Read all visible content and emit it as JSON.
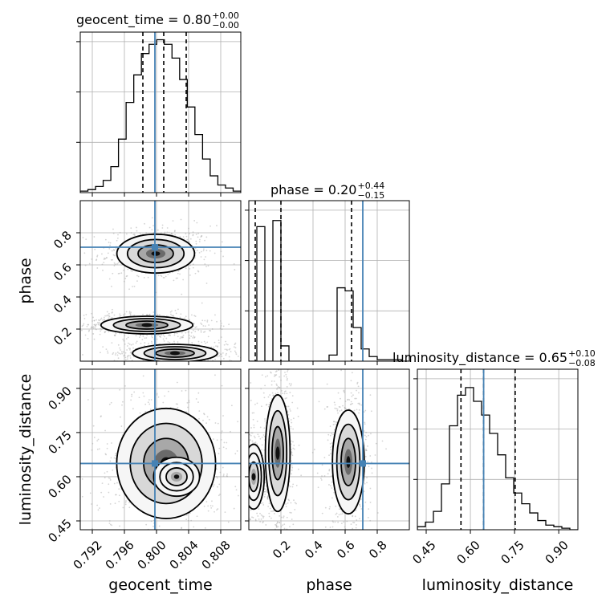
{
  "colors": {
    "truth": "#4682b4",
    "contour": "#000000",
    "grid": "#b0b0b0",
    "points": "#a0a0a0"
  },
  "titles": [
    {
      "name": "geocent_time",
      "eq": " = 0.80",
      "sup": "+0.00",
      "sub": "−0.00"
    },
    {
      "name": "phase",
      "eq": " = 0.20",
      "sup": "+0.44",
      "sub": "−0.15"
    },
    {
      "name": "luminosity_distance",
      "eq": " = 0.65",
      "sup": "+0.10",
      "sub": "−0.08"
    }
  ],
  "chart_data": {
    "type": "corner",
    "parameters": [
      "geocent_time",
      "phase",
      "luminosity_distance"
    ],
    "axis_labels": [
      "geocent_time",
      "phase",
      "luminosity_distance"
    ],
    "ranges": [
      [
        0.7905,
        0.8105
      ],
      [
        0.0,
        1.0
      ],
      [
        0.42,
        0.965
      ]
    ],
    "ticks": [
      {
        "values": [
          0.792,
          0.796,
          0.8,
          0.804,
          0.808
        ],
        "labels": [
          "0.792",
          "0.796",
          "0.800",
          "0.804",
          "0.808"
        ]
      },
      {
        "values": [
          0.2,
          0.4,
          0.6,
          0.8
        ],
        "labels": [
          "0.2",
          "0.4",
          "0.6",
          "0.8"
        ]
      },
      {
        "values": [
          0.45,
          0.6,
          0.75,
          0.9
        ],
        "labels": [
          "0.45",
          "0.60",
          "0.75",
          "0.90"
        ]
      }
    ],
    "truths": [
      0.7998,
      0.71,
      0.645
    ],
    "quantiles": [
      [
        0.7983,
        0.8009,
        0.8037
      ],
      [
        0.04,
        0.2,
        0.64
      ],
      [
        0.568,
        0.645,
        0.752
      ]
    ],
    "histograms": [
      {
        "counts": [
          1,
          2,
          4,
          8,
          17,
          35,
          59,
          77,
          91,
          97,
          100,
          97,
          88,
          74,
          56,
          38,
          22,
          11,
          5,
          3,
          1
        ],
        "ymax": 105
      },
      {
        "counts": [
          0,
          88,
          0,
          92,
          10,
          0,
          0,
          0,
          0,
          0,
          4,
          48,
          46,
          22,
          8,
          3,
          1,
          1,
          1,
          0
        ],
        "ymax": 105
      },
      {
        "counts": [
          2,
          5,
          12,
          30,
          68,
          88,
          93,
          84,
          75,
          63,
          49,
          34,
          24,
          17,
          11,
          6,
          3,
          2,
          1,
          0
        ],
        "ymax": 105
      }
    ],
    "histogram_yticks": [
      [
        0.33,
        0.66,
        0.99
      ],
      [
        0.33,
        0.66,
        0.99
      ],
      [
        0.33,
        0.66,
        0.99
      ]
    ],
    "posterior_modes": [
      {
        "pair": [
          0,
          1
        ],
        "blobs": [
          {
            "mean": [
              0.7999,
              0.67
            ],
            "sd": [
              0.0022,
              0.055
            ],
            "w": 0.8
          },
          {
            "mean": [
              0.7988,
              0.225
            ],
            "sd": [
              0.0026,
              0.025
            ],
            "w": 1.0
          },
          {
            "mean": [
              0.8023,
              0.05
            ],
            "sd": [
              0.0024,
              0.025
            ],
            "w": 0.9
          }
        ]
      },
      {
        "pair": [
          0,
          2
        ],
        "blobs": [
          {
            "mean": [
              0.8012,
              0.645
            ],
            "sd": [
              0.0028,
              0.085
            ],
            "w": 1.0
          },
          {
            "mean": [
              0.8025,
              0.6
            ],
            "sd": [
              0.0013,
              0.03
            ],
            "w": 0.6
          }
        ]
      },
      {
        "pair": [
          1,
          2
        ],
        "blobs": [
          {
            "mean": [
              0.18,
              0.68
            ],
            "sd": [
              0.035,
              0.09
            ],
            "w": 1.0
          },
          {
            "mean": [
              0.03,
              0.6
            ],
            "sd": [
              0.03,
              0.05
            ],
            "w": 0.6
          },
          {
            "mean": [
              0.62,
              0.65
            ],
            "sd": [
              0.045,
              0.08
            ],
            "w": 0.9
          }
        ]
      }
    ]
  }
}
